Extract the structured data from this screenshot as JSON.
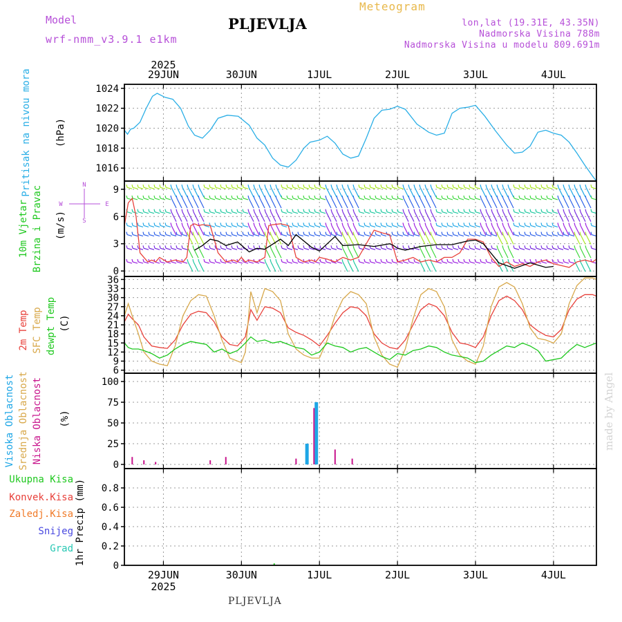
{
  "header": {
    "model_label": "Model",
    "model_value": "wrf-nmm_v3.9.1  e1km",
    "station": "PLJEVLJA",
    "meteogram": "Meteogram",
    "lonlat": "lon,lat (19.31E, 43.35N)",
    "elevation": "Nadmorska Visina 788m",
    "model_elevation": "Nadmorska Visina u modelu 809.691m"
  },
  "footer": {
    "station": "PLJEVLJA",
    "credit": "made by Angel"
  },
  "colors": {
    "pressure": "#29aee6",
    "temp2m": "#e8403a",
    "sfc": "#d8a84a",
    "dew": "#1ec81e",
    "visoka": "#1ea6e6",
    "srednja": "#d8a84a",
    "niska": "#c8148c",
    "ukupna": "#1ec81e",
    "konvek": "#e8403a",
    "zaledj": "#f07a28",
    "snijeg": "#4848e0",
    "grad": "#28c8b4",
    "model": "#b64fd8",
    "meteogram": "#e8b84a"
  },
  "time_axis": {
    "year_label": "2025",
    "days": [
      {
        "label": "29JUN",
        "t": 0.5
      },
      {
        "label": "30JUN",
        "t": 1.5
      },
      {
        "label": "1JUL",
        "t": 2.5
      },
      {
        "label": "2JUL",
        "t": 3.5
      },
      {
        "label": "3JUL",
        "t": 4.5
      },
      {
        "label": "4JUL",
        "t": 5.5
      }
    ],
    "range": [
      0,
      6.05
    ]
  },
  "chart_data": [
    {
      "type": "line",
      "ylabel": [
        "Pritisak na nivou mora",
        "(hPa)"
      ],
      "ylim": [
        1014.7,
        1024.4
      ],
      "yticks": [
        1016,
        1018,
        1020,
        1022,
        1024
      ],
      "grid": true,
      "series": [
        {
          "color": "#29aee6",
          "x": [
            0,
            0.04,
            0.08,
            0.12,
            0.2,
            0.28,
            0.36,
            0.42,
            0.52,
            0.62,
            0.72,
            0.82,
            0.9,
            1.0,
            1.1,
            1.2,
            1.32,
            1.46,
            1.6,
            1.7,
            1.8,
            1.9,
            2.0,
            2.1,
            2.2,
            2.3,
            2.38,
            2.5,
            2.6,
            2.7,
            2.8,
            2.9,
            3.0,
            3.1,
            3.2,
            3.3,
            3.4,
            3.5,
            3.6,
            3.75,
            3.9,
            4.0,
            4.1,
            4.2,
            4.3,
            4.4,
            4.5,
            4.62,
            4.75,
            4.9,
            5.0,
            5.1,
            5.2,
            5.3,
            5.4,
            5.5,
            5.6,
            5.7,
            5.8,
            5.9,
            6.0,
            6.05
          ],
          "y": [
            1019.8,
            1019.4,
            1019.9,
            1020.0,
            1020.6,
            1022.0,
            1023.2,
            1023.5,
            1023.1,
            1022.9,
            1022.0,
            1020.2,
            1019.3,
            1019.0,
            1019.8,
            1021.0,
            1021.3,
            1021.2,
            1020.3,
            1019.0,
            1018.3,
            1017.0,
            1016.3,
            1016.1,
            1016.8,
            1018.0,
            1018.6,
            1018.8,
            1019.2,
            1018.5,
            1017.4,
            1017.0,
            1017.2,
            1019.0,
            1021.0,
            1021.8,
            1021.9,
            1022.2,
            1021.9,
            1020.4,
            1019.6,
            1019.3,
            1019.5,
            1021.5,
            1022.0,
            1022.1,
            1022.3,
            1021.2,
            1019.8,
            1018.3,
            1017.5,
            1017.6,
            1018.2,
            1019.6,
            1019.8,
            1019.5,
            1019.3,
            1018.6,
            1017.5,
            1016.3,
            1015.2,
            1014.7
          ]
        }
      ]
    },
    {
      "type": "line",
      "ylabel": [
        "10m Vjetar",
        "Brzina i Pravac",
        "(m/s)"
      ],
      "ylim": [
        -0.6,
        9.9
      ],
      "yticks": [
        0,
        3,
        6,
        9
      ],
      "grid": true,
      "barb_levels": [
        1,
        2.5,
        4,
        5,
        6.5,
        8,
        9.2
      ],
      "series": [
        {
          "color": "#e8403a",
          "x": [
            0,
            0.05,
            0.1,
            0.15,
            0.2,
            0.25,
            0.3,
            0.35,
            0.4,
            0.45,
            0.55,
            0.65,
            0.75,
            0.8,
            0.85,
            0.9,
            0.95,
            1.0,
            1.1,
            1.2,
            1.3,
            1.4,
            1.45,
            1.5,
            1.55,
            1.6,
            1.7,
            1.8,
            1.85,
            1.9,
            2.0,
            2.1,
            2.2,
            2.3,
            2.4,
            2.45,
            2.5,
            2.6,
            2.7,
            2.8,
            2.9,
            3.0,
            3.1,
            3.2,
            3.3,
            3.4,
            3.5,
            3.6,
            3.7,
            3.8,
            3.9,
            4.0,
            4.1,
            4.2,
            4.3,
            4.4,
            4.5,
            4.6,
            4.7,
            4.8,
            4.9,
            5.0,
            5.1,
            5.2,
            5.3,
            5.4,
            5.5,
            5.6,
            5.7,
            5.8,
            5.9,
            6.0,
            6.05
          ],
          "y": [
            5.0,
            7.5,
            8.0,
            6.0,
            2.0,
            1.5,
            1.0,
            1.2,
            1.0,
            1.5,
            1.0,
            1.2,
            1.0,
            1.5,
            5.0,
            5.2,
            5.0,
            5.1,
            5.0,
            2.0,
            1.0,
            1.2,
            1.0,
            1.5,
            1.0,
            1.2,
            1.0,
            1.5,
            5.0,
            5.1,
            5.2,
            5.0,
            1.5,
            1.0,
            1.2,
            1.0,
            1.5,
            1.3,
            1.0,
            1.5,
            1.2,
            1.5,
            3.0,
            4.5,
            4.2,
            4.0,
            1.0,
            1.2,
            1.5,
            1.0,
            1.2,
            1.0,
            1.5,
            1.5,
            2.0,
            3.5,
            3.5,
            3.2,
            1.5,
            0.5,
            1.0,
            0.5,
            0.8,
            0.5,
            1.0,
            1.2,
            0.8,
            0.6,
            0.4,
            1.0,
            1.2,
            1.0,
            1.3
          ]
        },
        {
          "color": "#000000",
          "x": [
            0.9,
            1.0,
            1.1,
            1.2,
            1.3,
            1.45,
            1.6,
            1.7,
            1.8,
            2.0,
            2.1,
            2.2,
            2.4,
            2.5,
            2.6,
            2.7,
            2.8,
            3.0,
            3.2,
            3.4,
            3.45,
            3.5,
            3.6,
            3.8,
            4.0,
            4.2,
            4.4,
            4.5,
            4.6,
            4.8,
            5.0,
            5.2,
            5.4,
            5.5
          ],
          "y": [
            2.3,
            2.8,
            3.5,
            3.3,
            2.8,
            3.2,
            2.1,
            2.5,
            2.4,
            3.5,
            2.8,
            4.0,
            2.6,
            2.2,
            3.0,
            3.8,
            2.8,
            2.9,
            2.7,
            3.0,
            2.8,
            2.5,
            2.3,
            2.7,
            2.9,
            2.9,
            3.3,
            3.4,
            3.0,
            0.9,
            0.3,
            0.9,
            0.4,
            0.5
          ]
        }
      ]
    },
    {
      "type": "line",
      "ylabel": [
        "2m Temp",
        "SFC Temp",
        "dewpt Temp",
        "(C)"
      ],
      "ylim": [
        5,
        37
      ],
      "yticks": [
        6,
        9,
        12,
        15,
        18,
        21,
        24,
        27,
        30,
        33,
        36
      ],
      "grid": true,
      "series": [
        {
          "name": "2m Temp",
          "color": "#e8403a",
          "x": [
            0,
            0.05,
            0.1,
            0.18,
            0.25,
            0.35,
            0.45,
            0.55,
            0.65,
            0.75,
            0.85,
            0.95,
            1.05,
            1.15,
            1.25,
            1.35,
            1.45,
            1.55,
            1.62,
            1.7,
            1.8,
            1.9,
            2.0,
            2.1,
            2.2,
            2.3,
            2.4,
            2.5,
            2.6,
            2.7,
            2.8,
            2.9,
            3.0,
            3.1,
            3.2,
            3.3,
            3.4,
            3.5,
            3.6,
            3.7,
            3.8,
            3.9,
            4.0,
            4.1,
            4.2,
            4.3,
            4.4,
            4.5,
            4.6,
            4.7,
            4.8,
            4.9,
            5.0,
            5.1,
            5.2,
            5.3,
            5.4,
            5.5,
            5.6,
            5.7,
            5.8,
            5.9,
            6.0,
            6.05
          ],
          "y": [
            22.0,
            24.5,
            23.0,
            21.0,
            17.0,
            14.0,
            13.5,
            13.2,
            16.0,
            21.0,
            24.5,
            25.5,
            25.0,
            22.0,
            17.0,
            14.5,
            14.0,
            17.0,
            26.0,
            22.5,
            27.0,
            26.5,
            25.0,
            20.0,
            18.5,
            17.5,
            16.0,
            14.0,
            17.5,
            21.5,
            25.0,
            27.0,
            26.5,
            24.0,
            18.0,
            15.0,
            13.5,
            13.0,
            16.0,
            21.0,
            26.0,
            28.0,
            27.0,
            24.0,
            18.5,
            15.0,
            14.5,
            13.5,
            17.0,
            24.0,
            29.0,
            30.5,
            29.0,
            26.0,
            21.0,
            19.0,
            17.5,
            17.0,
            19.5,
            26.0,
            29.5,
            31.0,
            31.0,
            30.5
          ]
        },
        {
          "name": "SFC Temp",
          "color": "#d8a84a",
          "x": [
            0,
            0.05,
            0.1,
            0.18,
            0.25,
            0.35,
            0.45,
            0.55,
            0.65,
            0.75,
            0.85,
            0.95,
            1.05,
            1.15,
            1.25,
            1.35,
            1.45,
            1.5,
            1.55,
            1.62,
            1.7,
            1.8,
            1.9,
            2.0,
            2.1,
            2.2,
            2.3,
            2.4,
            2.5,
            2.6,
            2.7,
            2.8,
            2.9,
            3.0,
            3.1,
            3.2,
            3.3,
            3.4,
            3.5,
            3.6,
            3.7,
            3.8,
            3.9,
            4.0,
            4.1,
            4.2,
            4.3,
            4.4,
            4.5,
            4.6,
            4.7,
            4.8,
            4.9,
            5.0,
            5.1,
            5.2,
            5.3,
            5.4,
            5.5,
            5.6,
            5.7,
            5.8,
            5.9,
            6.0,
            6.05
          ],
          "y": [
            24.0,
            28.0,
            24.0,
            18.0,
            12.0,
            9.0,
            8.0,
            7.5,
            14.0,
            24.0,
            29.0,
            31.0,
            30.5,
            24.0,
            16.0,
            10.0,
            9.0,
            8.5,
            12.0,
            32.0,
            25.0,
            33.0,
            32.0,
            29.0,
            18.0,
            13.0,
            11.0,
            10.0,
            10.0,
            16.0,
            24.0,
            29.5,
            32.0,
            31.0,
            28.0,
            17.0,
            11.0,
            8.0,
            7.0,
            13.0,
            23.0,
            31.0,
            33.0,
            32.0,
            27.0,
            16.0,
            11.0,
            9.0,
            8.0,
            14.0,
            27.0,
            33.5,
            35.0,
            33.5,
            28.0,
            20.0,
            16.5,
            16.0,
            15.0,
            18.0,
            28.0,
            34.0,
            36.5,
            36.5,
            36.0
          ]
        },
        {
          "name": "dewpt Temp",
          "color": "#1ec81e",
          "x": [
            0,
            0.05,
            0.1,
            0.18,
            0.25,
            0.35,
            0.45,
            0.55,
            0.65,
            0.75,
            0.85,
            0.95,
            1.05,
            1.15,
            1.25,
            1.35,
            1.45,
            1.55,
            1.62,
            1.7,
            1.8,
            1.9,
            2.0,
            2.1,
            2.2,
            2.3,
            2.4,
            2.5,
            2.6,
            2.7,
            2.8,
            2.9,
            3.0,
            3.1,
            3.2,
            3.3,
            3.4,
            3.5,
            3.6,
            3.7,
            3.8,
            3.9,
            4.0,
            4.1,
            4.2,
            4.3,
            4.4,
            4.5,
            4.6,
            4.7,
            4.8,
            4.9,
            5.0,
            5.1,
            5.2,
            5.3,
            5.4,
            5.5,
            5.6,
            5.7,
            5.8,
            5.9,
            6.0,
            6.05
          ],
          "y": [
            15.0,
            13.5,
            13.0,
            13.0,
            12.5,
            11.5,
            10.0,
            11.0,
            13.0,
            14.5,
            15.5,
            15.0,
            14.5,
            12.0,
            13.0,
            11.5,
            12.5,
            15.0,
            17.0,
            15.5,
            16.0,
            15.0,
            15.5,
            14.5,
            13.5,
            13.0,
            11.0,
            12.0,
            15.0,
            14.0,
            13.5,
            12.0,
            13.0,
            13.5,
            12.0,
            10.5,
            9.5,
            11.5,
            11.0,
            12.5,
            13.0,
            14.0,
            13.5,
            12.0,
            11.0,
            10.5,
            10.0,
            8.5,
            9.0,
            11.0,
            12.5,
            14.0,
            13.5,
            15.0,
            14.0,
            12.5,
            9.0,
            9.5,
            10.0,
            12.5,
            14.5,
            13.5,
            14.5,
            15.0
          ]
        }
      ]
    },
    {
      "type": "bar",
      "ylabel": [
        "Visoka Oblacnost",
        "Srednja Oblacnost",
        "Niska Oblacnost",
        "(%)"
      ],
      "ylim": [
        -5,
        110
      ],
      "yticks": [
        0,
        25,
        50,
        75,
        100
      ],
      "grid": true,
      "series": [
        {
          "name": "Visoka Oblacnost",
          "color": "#1ea6e6",
          "x": [
            2.34,
            2.46
          ],
          "values": [
            25,
            75
          ]
        },
        {
          "name": "Niska Oblacnost",
          "color": "#c8148c",
          "x": [
            0.1,
            0.25,
            0.4,
            1.1,
            1.3,
            2.2,
            2.43,
            2.7,
            2.92
          ],
          "values": [
            9,
            5,
            3,
            5,
            9,
            7,
            68,
            18,
            7
          ]
        }
      ]
    },
    {
      "type": "bar",
      "ylabel": [
        "Ukupna Kisa",
        "Konvek.Kisa",
        "Zaledj.Kisa",
        "Snijeg",
        "Grad",
        "1hr Precip (mm)"
      ],
      "ylim": [
        0,
        1.0
      ],
      "yticks": [
        0,
        0.2,
        0.4,
        0.6,
        0.8
      ],
      "grid": true,
      "series": [
        {
          "name": "Ukupna Kisa",
          "color": "#1ec81e",
          "x": [
            1.92
          ],
          "values": [
            0.02
          ]
        }
      ]
    }
  ]
}
